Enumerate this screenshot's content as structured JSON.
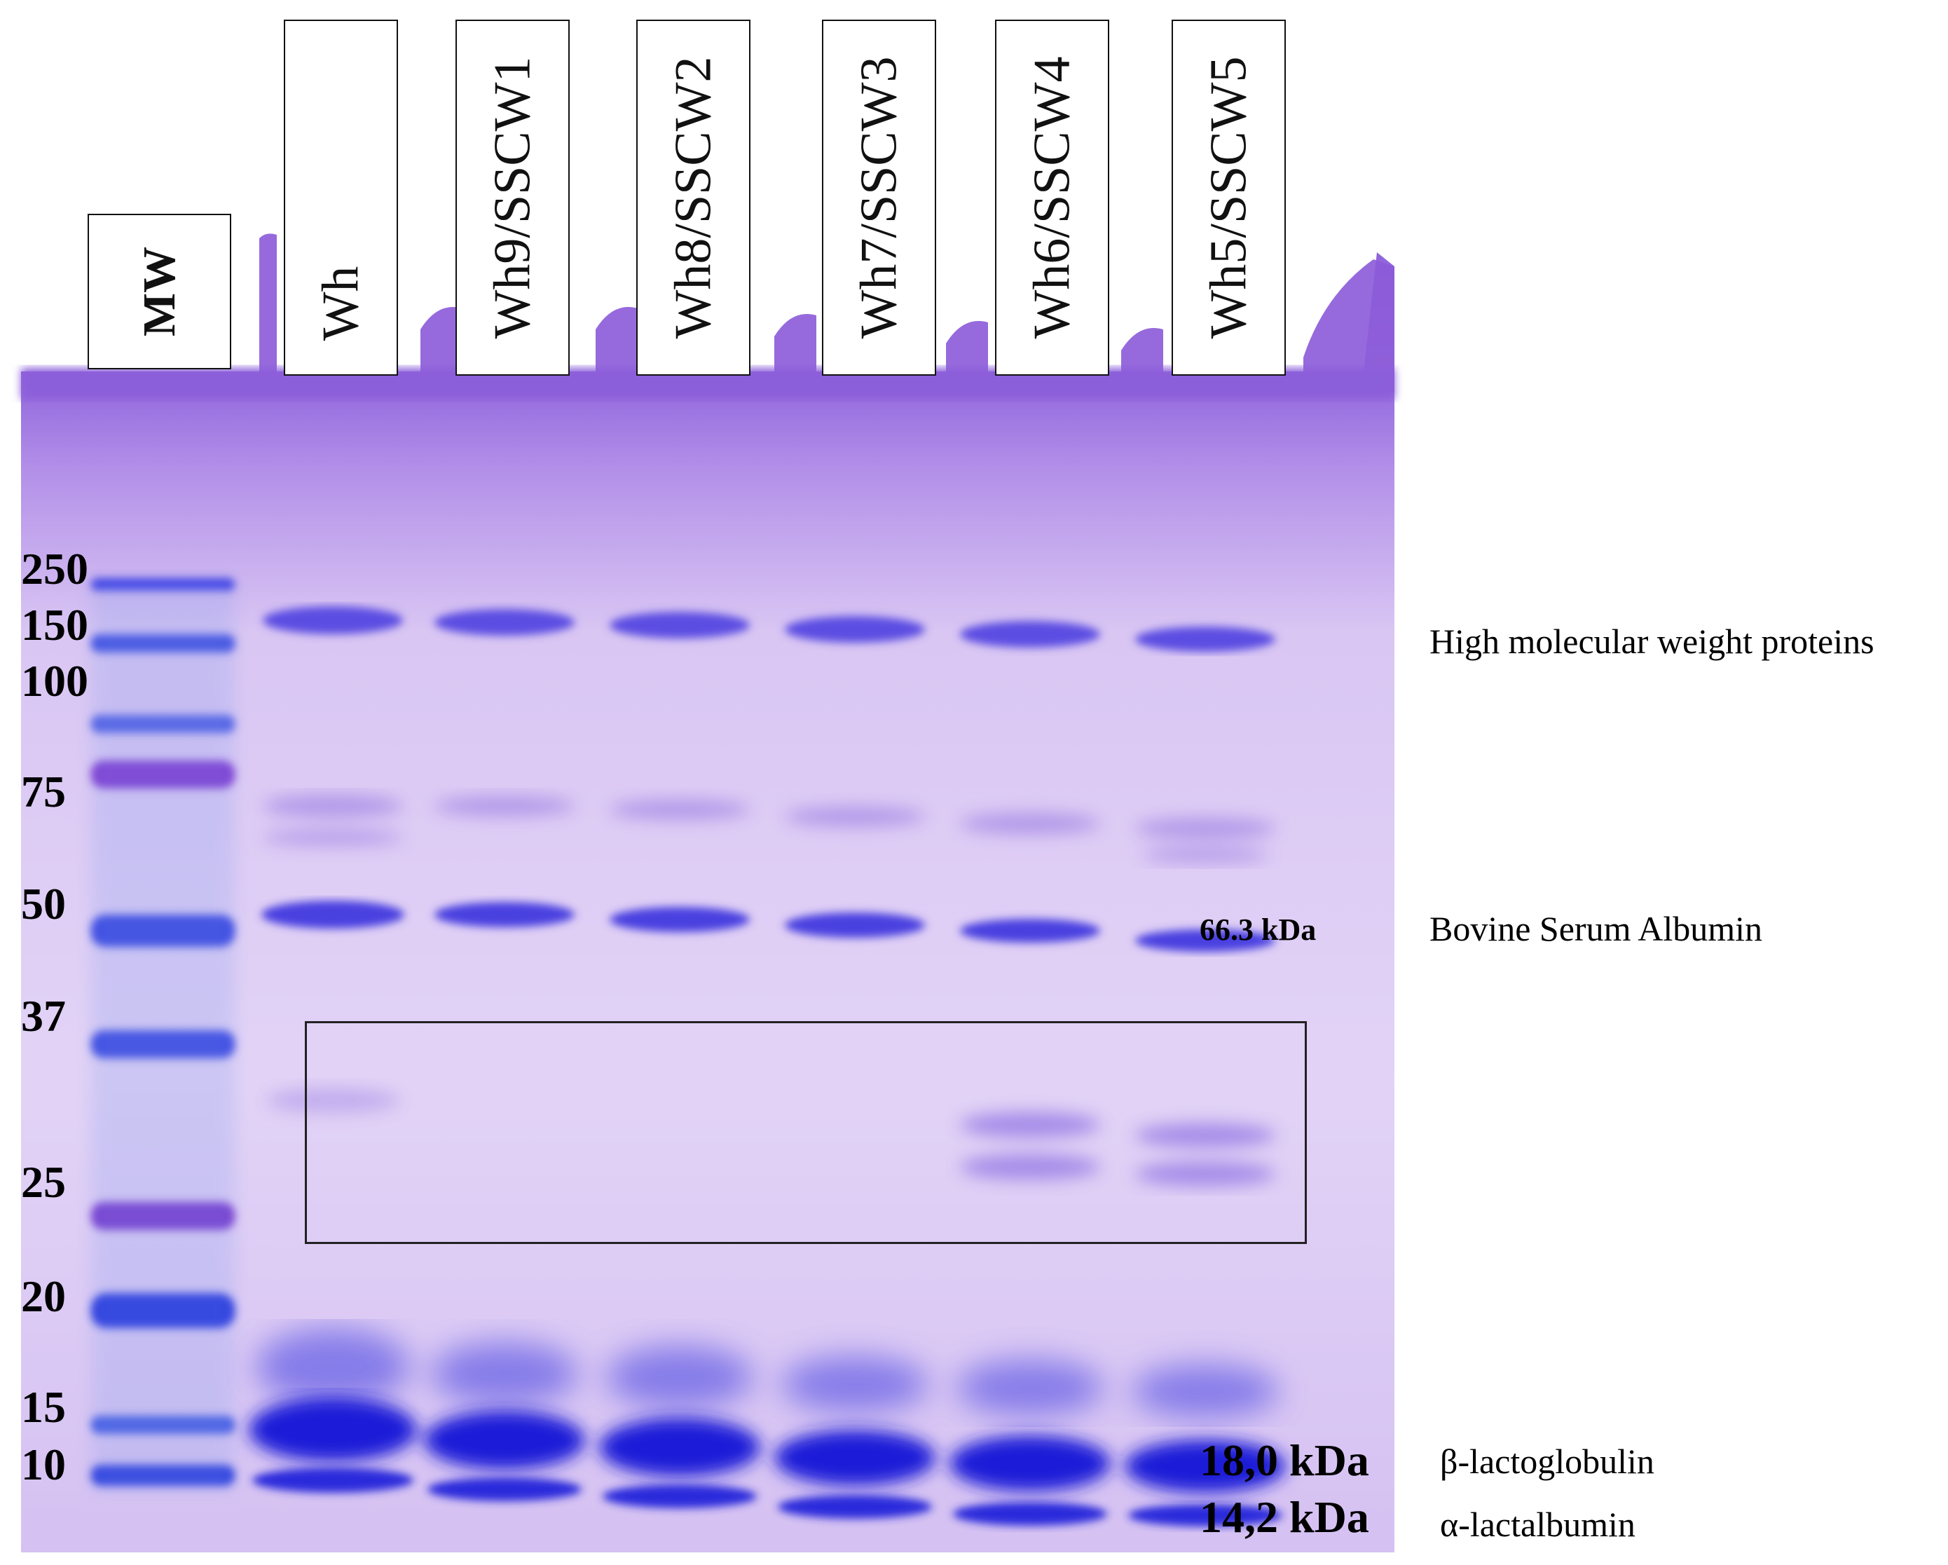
{
  "lanes": [
    {
      "label": "MW"
    },
    {
      "label": "Wh"
    },
    {
      "label": "Wh9/SSCW1"
    },
    {
      "label": "Wh8/SSCW2"
    },
    {
      "label": "Wh7/SSCW3"
    },
    {
      "label": "Wh6/SSCW4"
    },
    {
      "label": "Wh5/SSCW5"
    }
  ],
  "mw_markers": [
    "250",
    "150",
    "100",
    "75",
    "50",
    "37",
    "25",
    "20",
    "15",
    "10"
  ],
  "kda_labels": {
    "bsa": "66.3 kDa",
    "blg": "18,0 kDa",
    "ala": "14,2 kDa"
  },
  "protein_labels": {
    "hmw": "High molecular weight proteins",
    "bsa": "Bovine Serum Albumin",
    "blg": "β-lactoglobulin",
    "ala": "α-lactalbumin"
  },
  "colors": {
    "gel_top": "#a37ae0",
    "gel_body": "#ddc9f2",
    "band_dark": "#2a1fd6",
    "band_medium": "#5a4ae0",
    "marker_purple": "#7a2fc9"
  }
}
